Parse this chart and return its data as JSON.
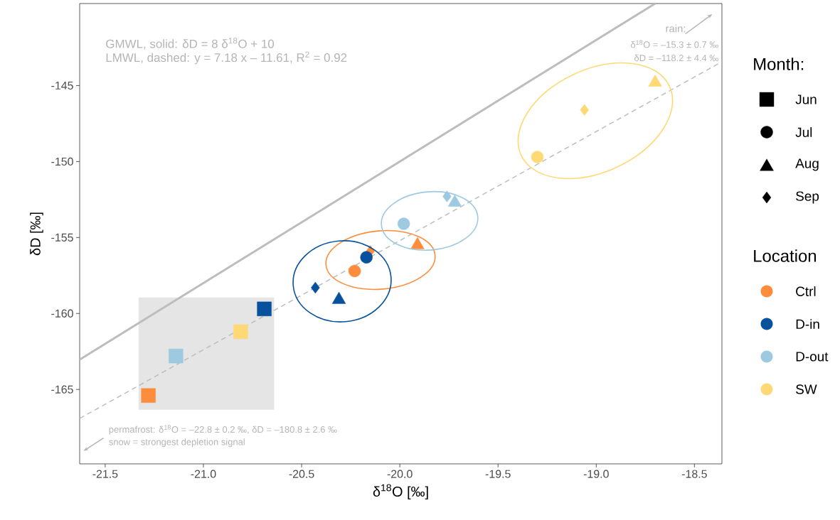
{
  "chart_data": {
    "type": "scatter",
    "xlabel": "δ$^{18}$O [‰]",
    "ylabel": "δD [‰]",
    "xlim": [
      -21.63,
      -18.36
    ],
    "ylim": [
      -169.9,
      -139.6
    ],
    "xticks": [
      {
        "value": -21.5,
        "label": "-21.5"
      },
      {
        "value": -21.0,
        "label": "-21.0"
      },
      {
        "value": -20.5,
        "label": "-20.5"
      },
      {
        "value": -20.0,
        "label": "-20.0"
      },
      {
        "value": -19.5,
        "label": "-19.5"
      },
      {
        "value": -19.0,
        "label": "-19.0"
      },
      {
        "value": -18.5,
        "label": "-18.5"
      }
    ],
    "yticks": [
      -165,
      -160,
      -155,
      -150,
      -145
    ],
    "legend": "right",
    "legend_title": [
      "Month:",
      "Location"
    ],
    "series": [
      {
        "type": "area",
        "color": "#e5e5e5",
        "x": [
          -21.33,
          -21.33,
          -20.64,
          -20.64
        ],
        "values": [
          -166.33,
          -158.95,
          -158.95,
          -166.33
        ]
      },
      {
        "type": "line",
        "color": "#bdbdbd",
        "line_style": "solid",
        "x": [
          -21.63,
          -18.7
        ],
        "values": [
          -163.04,
          -139.6
        ]
      },
      {
        "type": "line",
        "color": "#bdbdbd",
        "line_style": "dashed",
        "x": [
          -21.63,
          -18.36
        ],
        "values": [
          -166.91,
          -143.43
        ]
      },
      {
        "name": "Jun",
        "marker": "square"
      },
      {
        "name": "Jul",
        "marker": "circle"
      },
      {
        "name": "Aug",
        "marker": "triangle"
      },
      {
        "name": "Sep",
        "marker": "diamond"
      },
      {
        "name": "Ctrl",
        "color": "#fd8d3c",
        "x": [
          -21.28,
          -20.23,
          -19.91,
          -20.15
        ],
        "values": [
          -165.4,
          -157.2,
          -155.5,
          -155.9
        ]
      },
      {
        "name": "D-in",
        "color": "#08519c",
        "x": [
          -20.69,
          -20.17,
          -20.31,
          -20.43
        ],
        "values": [
          -159.7,
          -156.3,
          -159.1,
          -158.3
        ]
      },
      {
        "name": "D-out",
        "color": "#9ecae1",
        "x": [
          -21.14,
          -19.98,
          -19.72,
          -19.76
        ],
        "values": [
          -162.8,
          -154.1,
          -152.7,
          -152.3
        ]
      },
      {
        "name": "SW",
        "color": "#fed976",
        "x": [
          -20.81,
          -19.3,
          -18.7,
          -19.06
        ],
        "values": [
          -161.2,
          -149.7,
          -144.8,
          -146.6
        ]
      }
    ],
    "annotations": [
      "GMWL, solid: δD = 8 δ$^{18}$O + 10",
      "LMWL, dashed: y = 7.18 x – 11.61, R$^{2}$ = 0.92",
      "rain:",
      "δ$^{18}$O = –15.3 ± 0.7 ‰",
      "δD = –118.2 ± 4.4 ‰",
      "permafrost: δ$^{18}$O = –22.8 ± 0.2 ‰, δD = –180.8 ± 2.6 ‰",
      "snow = strongest depletion signal"
    ]
  }
}
